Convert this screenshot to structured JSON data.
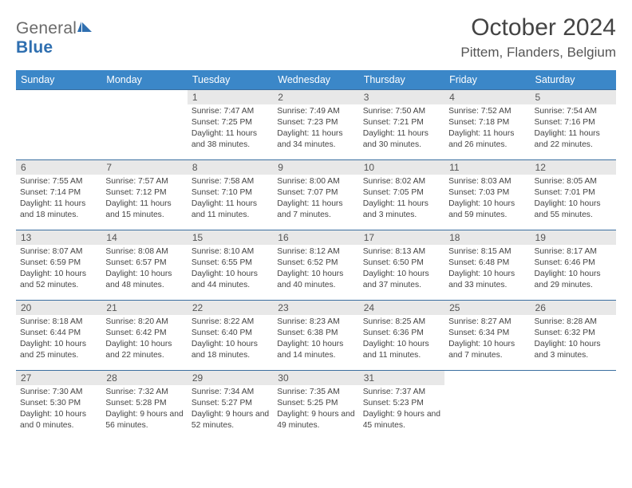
{
  "logo": {
    "text_general": "General",
    "text_blue": "Blue"
  },
  "header": {
    "title": "October 2024",
    "location": "Pittem, Flanders, Belgium"
  },
  "colors": {
    "header_bg": "#3b87c8",
    "header_text": "#ffffff",
    "daynum_bg": "#e8e8e8",
    "border": "#3b6fa0",
    "body_text": "#444444",
    "logo_gray": "#6a6a6a",
    "logo_blue": "#2f6fb0"
  },
  "day_names": [
    "Sunday",
    "Monday",
    "Tuesday",
    "Wednesday",
    "Thursday",
    "Friday",
    "Saturday"
  ],
  "weeks": [
    [
      null,
      null,
      {
        "n": "1",
        "sr": "Sunrise: 7:47 AM",
        "ss": "Sunset: 7:25 PM",
        "dl": "Daylight: 11 hours and 38 minutes."
      },
      {
        "n": "2",
        "sr": "Sunrise: 7:49 AM",
        "ss": "Sunset: 7:23 PM",
        "dl": "Daylight: 11 hours and 34 minutes."
      },
      {
        "n": "3",
        "sr": "Sunrise: 7:50 AM",
        "ss": "Sunset: 7:21 PM",
        "dl": "Daylight: 11 hours and 30 minutes."
      },
      {
        "n": "4",
        "sr": "Sunrise: 7:52 AM",
        "ss": "Sunset: 7:18 PM",
        "dl": "Daylight: 11 hours and 26 minutes."
      },
      {
        "n": "5",
        "sr": "Sunrise: 7:54 AM",
        "ss": "Sunset: 7:16 PM",
        "dl": "Daylight: 11 hours and 22 minutes."
      }
    ],
    [
      {
        "n": "6",
        "sr": "Sunrise: 7:55 AM",
        "ss": "Sunset: 7:14 PM",
        "dl": "Daylight: 11 hours and 18 minutes."
      },
      {
        "n": "7",
        "sr": "Sunrise: 7:57 AM",
        "ss": "Sunset: 7:12 PM",
        "dl": "Daylight: 11 hours and 15 minutes."
      },
      {
        "n": "8",
        "sr": "Sunrise: 7:58 AM",
        "ss": "Sunset: 7:10 PM",
        "dl": "Daylight: 11 hours and 11 minutes."
      },
      {
        "n": "9",
        "sr": "Sunrise: 8:00 AM",
        "ss": "Sunset: 7:07 PM",
        "dl": "Daylight: 11 hours and 7 minutes."
      },
      {
        "n": "10",
        "sr": "Sunrise: 8:02 AM",
        "ss": "Sunset: 7:05 PM",
        "dl": "Daylight: 11 hours and 3 minutes."
      },
      {
        "n": "11",
        "sr": "Sunrise: 8:03 AM",
        "ss": "Sunset: 7:03 PM",
        "dl": "Daylight: 10 hours and 59 minutes."
      },
      {
        "n": "12",
        "sr": "Sunrise: 8:05 AM",
        "ss": "Sunset: 7:01 PM",
        "dl": "Daylight: 10 hours and 55 minutes."
      }
    ],
    [
      {
        "n": "13",
        "sr": "Sunrise: 8:07 AM",
        "ss": "Sunset: 6:59 PM",
        "dl": "Daylight: 10 hours and 52 minutes."
      },
      {
        "n": "14",
        "sr": "Sunrise: 8:08 AM",
        "ss": "Sunset: 6:57 PM",
        "dl": "Daylight: 10 hours and 48 minutes."
      },
      {
        "n": "15",
        "sr": "Sunrise: 8:10 AM",
        "ss": "Sunset: 6:55 PM",
        "dl": "Daylight: 10 hours and 44 minutes."
      },
      {
        "n": "16",
        "sr": "Sunrise: 8:12 AM",
        "ss": "Sunset: 6:52 PM",
        "dl": "Daylight: 10 hours and 40 minutes."
      },
      {
        "n": "17",
        "sr": "Sunrise: 8:13 AM",
        "ss": "Sunset: 6:50 PM",
        "dl": "Daylight: 10 hours and 37 minutes."
      },
      {
        "n": "18",
        "sr": "Sunrise: 8:15 AM",
        "ss": "Sunset: 6:48 PM",
        "dl": "Daylight: 10 hours and 33 minutes."
      },
      {
        "n": "19",
        "sr": "Sunrise: 8:17 AM",
        "ss": "Sunset: 6:46 PM",
        "dl": "Daylight: 10 hours and 29 minutes."
      }
    ],
    [
      {
        "n": "20",
        "sr": "Sunrise: 8:18 AM",
        "ss": "Sunset: 6:44 PM",
        "dl": "Daylight: 10 hours and 25 minutes."
      },
      {
        "n": "21",
        "sr": "Sunrise: 8:20 AM",
        "ss": "Sunset: 6:42 PM",
        "dl": "Daylight: 10 hours and 22 minutes."
      },
      {
        "n": "22",
        "sr": "Sunrise: 8:22 AM",
        "ss": "Sunset: 6:40 PM",
        "dl": "Daylight: 10 hours and 18 minutes."
      },
      {
        "n": "23",
        "sr": "Sunrise: 8:23 AM",
        "ss": "Sunset: 6:38 PM",
        "dl": "Daylight: 10 hours and 14 minutes."
      },
      {
        "n": "24",
        "sr": "Sunrise: 8:25 AM",
        "ss": "Sunset: 6:36 PM",
        "dl": "Daylight: 10 hours and 11 minutes."
      },
      {
        "n": "25",
        "sr": "Sunrise: 8:27 AM",
        "ss": "Sunset: 6:34 PM",
        "dl": "Daylight: 10 hours and 7 minutes."
      },
      {
        "n": "26",
        "sr": "Sunrise: 8:28 AM",
        "ss": "Sunset: 6:32 PM",
        "dl": "Daylight: 10 hours and 3 minutes."
      }
    ],
    [
      {
        "n": "27",
        "sr": "Sunrise: 7:30 AM",
        "ss": "Sunset: 5:30 PM",
        "dl": "Daylight: 10 hours and 0 minutes."
      },
      {
        "n": "28",
        "sr": "Sunrise: 7:32 AM",
        "ss": "Sunset: 5:28 PM",
        "dl": "Daylight: 9 hours and 56 minutes."
      },
      {
        "n": "29",
        "sr": "Sunrise: 7:34 AM",
        "ss": "Sunset: 5:27 PM",
        "dl": "Daylight: 9 hours and 52 minutes."
      },
      {
        "n": "30",
        "sr": "Sunrise: 7:35 AM",
        "ss": "Sunset: 5:25 PM",
        "dl": "Daylight: 9 hours and 49 minutes."
      },
      {
        "n": "31",
        "sr": "Sunrise: 7:37 AM",
        "ss": "Sunset: 5:23 PM",
        "dl": "Daylight: 9 hours and 45 minutes."
      },
      null,
      null
    ]
  ]
}
